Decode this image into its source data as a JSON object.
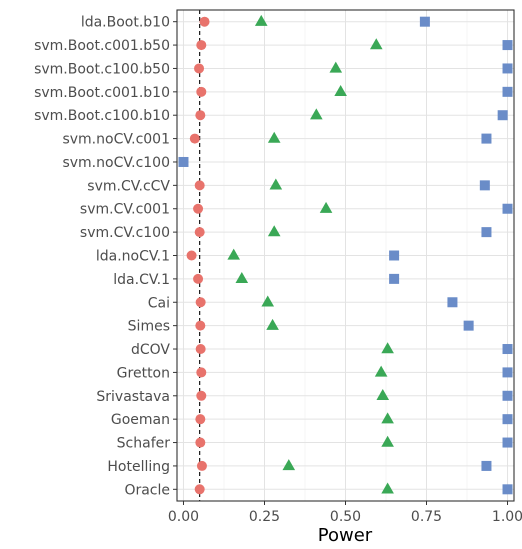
{
  "chart_data": {
    "type": "scatter",
    "title": "",
    "xlabel": "Power",
    "ylabel": "",
    "xlim": [
      -0.02,
      1.02
    ],
    "x_ticks": [
      0.0,
      0.25,
      0.5,
      0.75,
      1.0
    ],
    "x_tick_labels": [
      "0.00",
      "0.25",
      "0.50",
      "0.75",
      "1.00"
    ],
    "reference_line": {
      "x": 0.05,
      "style": "dashed",
      "color": "#000000"
    },
    "grid": true,
    "legend": "none",
    "categories": [
      "lda.Boot.b10",
      "svm.Boot.c001.b50",
      "svm.Boot.c100.b50",
      "svm.Boot.c001.b10",
      "svm.Boot.c100.b10",
      "svm.noCV.c001",
      "svm.noCV.c100",
      "svm.CV.cCV",
      "svm.CV.c001",
      "svm.CV.c100",
      "lda.noCV.1",
      "lda.CV.1",
      "Cai",
      "Simes",
      "dCOV",
      "Gretton",
      "Srivastava",
      "Goeman",
      "Schafer",
      "Hotelling",
      "Oracle"
    ],
    "series": [
      {
        "marker": "circle",
        "color": "#E8736C",
        "values": [
          0.065,
          0.055,
          0.048,
          0.055,
          0.052,
          0.035,
          null,
          0.05,
          0.045,
          0.05,
          0.025,
          0.045,
          0.053,
          0.052,
          0.053,
          0.055,
          0.055,
          0.052,
          0.052,
          0.057,
          0.05
        ]
      },
      {
        "marker": "triangle",
        "color": "#3AA856",
        "values": [
          0.24,
          0.595,
          0.47,
          0.485,
          0.41,
          0.28,
          null,
          0.285,
          0.44,
          0.28,
          0.155,
          0.18,
          0.26,
          0.275,
          0.63,
          0.61,
          0.615,
          0.63,
          0.63,
          0.325,
          0.63
        ]
      },
      {
        "marker": "square",
        "color": "#6A8CC8",
        "values": [
          0.745,
          1.0,
          1.0,
          1.0,
          0.985,
          0.935,
          0.0,
          0.93,
          1.0,
          0.935,
          0.65,
          0.65,
          0.83,
          0.88,
          1.0,
          1.0,
          1.0,
          1.0,
          1.0,
          0.935,
          1.0
        ]
      }
    ]
  }
}
